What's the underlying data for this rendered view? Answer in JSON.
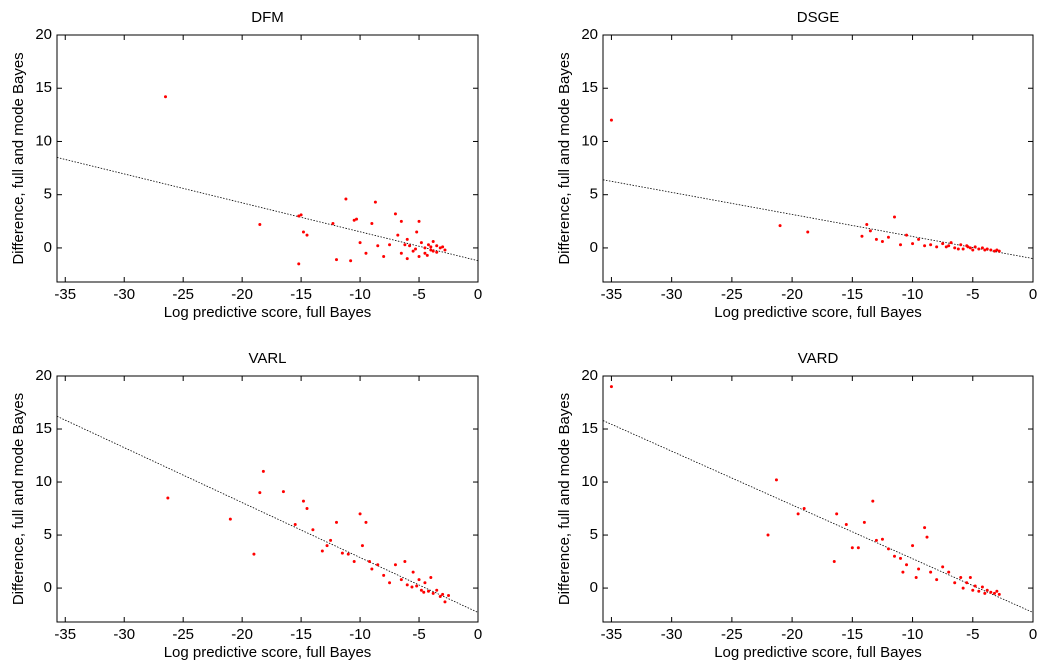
{
  "chart_data": [
    {
      "type": "scatter",
      "title": "DFM",
      "xlabel": "Log predictive score, full Bayes",
      "ylabel": "Difference, full and mode Bayes",
      "color": "#ff0000",
      "x": [
        -26.5,
        -18.5,
        -15.2,
        -15,
        -14.8,
        -14.5,
        -15.2,
        -12.3,
        -12,
        -11.2,
        -10.8,
        -10.5,
        -10.3,
        -10,
        -9.5,
        -9,
        -8.7,
        -8.5,
        -8,
        -7.5,
        -7,
        -6.8,
        -6.5,
        -6.5,
        -6,
        -6,
        -5.8,
        -5.5,
        -5.2,
        -5,
        -5,
        -4.8,
        -4.5,
        -4.5,
        -4.2,
        -4,
        -4,
        -3.8,
        -3.5,
        -3.5,
        -3.2,
        -3,
        -2.8,
        -3.8,
        -4.3,
        -5.3,
        -6.2
      ],
      "y": [
        14.2,
        2.2,
        3.0,
        3.1,
        1.5,
        1.2,
        -1.5,
        2.3,
        -1.1,
        4.6,
        -1.2,
        2.6,
        2.7,
        0.5,
        -0.5,
        2.3,
        4.3,
        0.2,
        -0.8,
        0.3,
        3.2,
        1.2,
        2.5,
        -0.5,
        0.8,
        -1,
        0.2,
        -0.3,
        1.5,
        2.5,
        -0.8,
        0.5,
        0,
        -0.5,
        0.3,
        -0.2,
        0.1,
        -0.3,
        0.2,
        -0.4,
        0,
        0.1,
        -0.2,
        0.6,
        -0.7,
        -0.1,
        0.3
      ],
      "trend_line": {
        "x": [
          -35.7,
          0
        ],
        "y": [
          8.5,
          -1.2
        ]
      },
      "xlim": [
        -35.7,
        0
      ],
      "ylim": [
        -3.2,
        20
      ],
      "xticks": [
        -35,
        -30,
        -25,
        -20,
        -15,
        -10,
        -5,
        0
      ],
      "yticks": [
        0,
        5,
        10,
        15,
        20
      ]
    },
    {
      "type": "scatter",
      "title": "DSGE",
      "xlabel": "Log predictive score, full Bayes",
      "ylabel": "Difference, full and mode Bayes",
      "color": "#ff0000",
      "x": [
        -35,
        -21,
        -18.7,
        -14.2,
        -13.8,
        -13.5,
        -13,
        -12.5,
        -12,
        -11.5,
        -11,
        -10.5,
        -10,
        -9.5,
        -9,
        -8.5,
        -8,
        -7.5,
        -7,
        -6.8,
        -6.5,
        -6,
        -5.8,
        -5.5,
        -5.2,
        -5,
        -4.8,
        -4.5,
        -4.2,
        -4,
        -3.8,
        -3.5,
        -3.2,
        -3,
        -2.8,
        -6.2,
        -7.2,
        -5.4
      ],
      "y": [
        12,
        2.1,
        1.5,
        1.1,
        2.2,
        1.6,
        0.8,
        0.6,
        1,
        2.9,
        0.3,
        1.2,
        0.4,
        0.8,
        0.2,
        0.3,
        0.1,
        0.4,
        0.2,
        0.5,
        0,
        0.3,
        -0.1,
        0.2,
        0,
        -0.2,
        0.1,
        -0.1,
        0,
        -0.2,
        -0.1,
        -0.2,
        -0.3,
        -0.2,
        -0.3,
        -0.1,
        0.1,
        0.1
      ],
      "trend_line": {
        "x": [
          -35.7,
          0
        ],
        "y": [
          6.4,
          -1.0
        ]
      },
      "xlim": [
        -35.7,
        0
      ],
      "ylim": [
        -3.2,
        20
      ],
      "xticks": [
        -35,
        -30,
        -25,
        -20,
        -15,
        -10,
        -5,
        0
      ],
      "yticks": [
        0,
        5,
        10,
        15,
        20
      ]
    },
    {
      "type": "scatter",
      "title": "VARL",
      "xlabel": "Log predictive score, full Bayes",
      "ylabel": "Difference, full and mode Bayes",
      "color": "#ff0000",
      "x": [
        -26.3,
        -21,
        -19,
        -18.5,
        -18.2,
        -16.5,
        -15.5,
        -14.8,
        -14.5,
        -14,
        -13.2,
        -12.8,
        -12.5,
        -12,
        -11.5,
        -11,
        -10.5,
        -10,
        -9.8,
        -9.5,
        -9.2,
        -9,
        -8.5,
        -8,
        -7.5,
        -7,
        -6.5,
        -6.2,
        -6,
        -5.5,
        -5.2,
        -5,
        -4.8,
        -4.5,
        -4.2,
        -4,
        -3.8,
        -3.5,
        -3.2,
        -3,
        -2.8,
        -2.5,
        -4.6,
        -5.6
      ],
      "y": [
        8.5,
        6.5,
        3.2,
        9,
        11,
        9.1,
        6,
        8.2,
        7.5,
        5.5,
        3.5,
        4,
        4.5,
        6.2,
        3.3,
        3.2,
        2.5,
        7,
        4,
        6.2,
        2.5,
        1.8,
        2.2,
        1.2,
        0.5,
        2.2,
        0.8,
        2.5,
        0.3,
        1.5,
        0.2,
        0.8,
        -0.2,
        0.5,
        -0.3,
        1,
        -0.5,
        -0.2,
        -0.8,
        -0.6,
        -1.3,
        -0.7,
        -0.4,
        0.1
      ],
      "trend_line": {
        "x": [
          -35.7,
          0
        ],
        "y": [
          16.2,
          -2.3
        ]
      },
      "xlim": [
        -35.7,
        0
      ],
      "ylim": [
        -3.2,
        20
      ],
      "xticks": [
        -35,
        -30,
        -25,
        -20,
        -15,
        -10,
        -5,
        0
      ],
      "yticks": [
        0,
        5,
        10,
        15,
        20
      ]
    },
    {
      "type": "scatter",
      "title": "VARD",
      "xlabel": "Log predictive score, full Bayes",
      "ylabel": "Difference, full and mode Bayes",
      "color": "#ff0000",
      "x": [
        -35,
        -22,
        -21.3,
        -19.5,
        -19,
        -16.5,
        -16.3,
        -15.5,
        -15,
        -14.5,
        -14,
        -13.3,
        -13,
        -12.5,
        -12,
        -11.5,
        -11,
        -10.8,
        -10.5,
        -10,
        -9.7,
        -9.5,
        -9,
        -8.8,
        -8.5,
        -8,
        -7.5,
        -7,
        -6.5,
        -6,
        -5.8,
        -5.5,
        -5.2,
        -5,
        -4.8,
        -4.5,
        -4.2,
        -4,
        -3.8,
        -3.5,
        -3.2,
        -3,
        -2.8
      ],
      "y": [
        19,
        5,
        10.2,
        7,
        7.5,
        2.5,
        7,
        6,
        3.8,
        3.8,
        6.2,
        8.2,
        4.5,
        4.6,
        3.7,
        3,
        2.8,
        1.5,
        2.2,
        4,
        1,
        1.8,
        5.7,
        4.8,
        1.5,
        0.8,
        2,
        1.5,
        0.5,
        1,
        0,
        0.5,
        1,
        -0.2,
        0.2,
        -0.3,
        0.1,
        -0.5,
        -0.2,
        -0.4,
        -0.5,
        -0.3,
        -0.6
      ],
      "trend_line": {
        "x": [
          -35.7,
          0
        ],
        "y": [
          15.8,
          -2.3
        ]
      },
      "xlim": [
        -35.7,
        0
      ],
      "ylim": [
        -3.2,
        20
      ],
      "xticks": [
        -35,
        -30,
        -25,
        -20,
        -15,
        -10,
        -5,
        0
      ],
      "yticks": [
        0,
        5,
        10,
        15,
        20
      ]
    }
  ]
}
